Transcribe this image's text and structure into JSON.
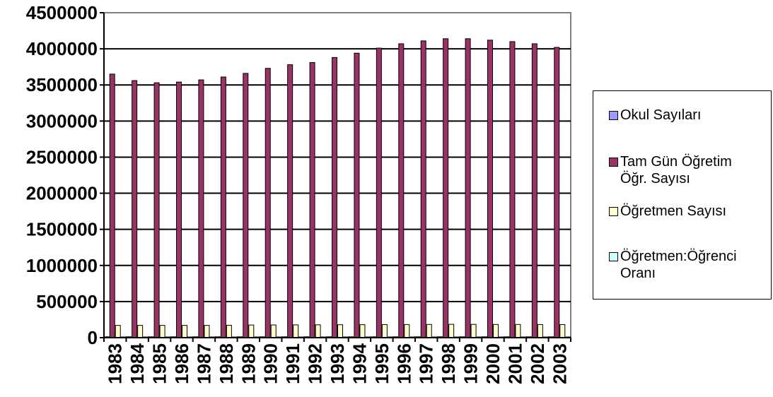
{
  "chart_data": {
    "type": "bar",
    "categories": [
      "1983",
      "1984",
      "1985",
      "1986",
      "1987",
      "1988",
      "1989",
      "1990",
      "1991",
      "1992",
      "1993",
      "1994",
      "1995",
      "1996",
      "1997",
      "1998",
      "1999",
      "2000",
      "2001",
      "2002",
      "2003"
    ],
    "series": [
      {
        "name": "Okul Sayıları",
        "color": "#9999ff",
        "values": [
          12000,
          12000,
          12000,
          12000,
          12000,
          12000,
          12000,
          12000,
          12000,
          12000,
          12000,
          12000,
          12000,
          12000,
          12000,
          12000,
          12000,
          12000,
          12000,
          12000,
          12000
        ]
      },
      {
        "name": "Tam Gün Öğretim\nÖğr. Sayısı",
        "color": "#993366",
        "values": [
          3650000,
          3560000,
          3530000,
          3540000,
          3570000,
          3610000,
          3660000,
          3730000,
          3780000,
          3810000,
          3880000,
          3940000,
          4010000,
          4070000,
          4110000,
          4140000,
          4140000,
          4120000,
          4100000,
          4070000,
          4020000
        ]
      },
      {
        "name": "Öğretmen Sayısı",
        "color": "#ffffcc",
        "values": [
          170000,
          170000,
          170000,
          170000,
          170000,
          172000,
          175000,
          176000,
          177000,
          178000,
          179000,
          180000,
          181000,
          182000,
          183000,
          185000,
          184000,
          183000,
          183000,
          182000,
          181000
        ]
      },
      {
        "name": "Öğretmen:Öğrenci\nOranı",
        "color": "#ccffff",
        "values": [
          21,
          21,
          21,
          21,
          21,
          21,
          21,
          21,
          21,
          21,
          22,
          22,
          22,
          22,
          22,
          22,
          22,
          22,
          22,
          22,
          22
        ]
      }
    ],
    "yticks": [
      "0",
      "500000",
      "1000000",
      "1500000",
      "2000000",
      "2500000",
      "3000000",
      "3500000",
      "4000000",
      "4500000"
    ],
    "ylim": [
      0,
      4500000
    ],
    "grid": true,
    "legend_position": "right"
  }
}
